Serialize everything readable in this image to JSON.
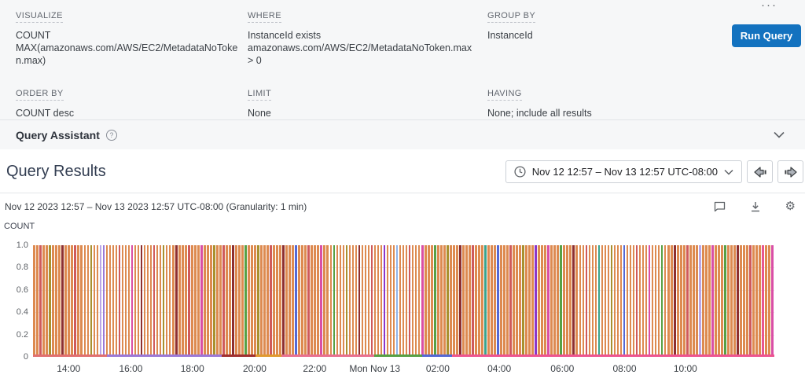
{
  "colors": {
    "run_button": "#1372bf",
    "panel_bg": "#f6f7f8",
    "divider": "#e2e4e8",
    "icon_gray": "#5f6368"
  },
  "icons": {
    "more_menu": "···",
    "help": "?",
    "gear": "⚙"
  },
  "query_builder": {
    "columns_row1": [
      {
        "label": "VISUALIZE",
        "lines": [
          "COUNT",
          "MAX(amazonaws.com/AWS/EC2/MetadataNoToken.max)"
        ]
      },
      {
        "label": "WHERE",
        "lines": [
          "InstanceId exists",
          "amazonaws.com/AWS/EC2/MetadataNoToken.max > 0"
        ]
      },
      {
        "label": "GROUP BY",
        "lines": [
          "InstanceId"
        ]
      }
    ],
    "columns_row2": [
      {
        "label": "ORDER BY",
        "lines": [
          "COUNT desc"
        ]
      },
      {
        "label": "LIMIT",
        "lines": [
          "None"
        ]
      },
      {
        "label": "HAVING",
        "lines": [
          "None; include all results"
        ]
      }
    ],
    "run_button_label": "Run Query"
  },
  "query_assistant": {
    "label": "Query Assistant"
  },
  "results": {
    "title": "Query Results",
    "time_range_label": "Nov 12 12:57 – Nov 13 12:57 UTC-08:00",
    "subtitle": "Nov 12 2023 12:57 – Nov 13 2023 12:57 UTC-08:00 (Granularity: 1 min)"
  },
  "chart_data": {
    "type": "bar",
    "title": "COUNT",
    "xlabel": "",
    "ylabel": "COUNT",
    "ylim": [
      0,
      1.0
    ],
    "grid": true,
    "legend": false,
    "granularity": "1 min",
    "yticks": [
      {
        "label": "1.0",
        "v": 1.0
      },
      {
        "label": "0.8",
        "v": 0.8
      },
      {
        "label": "0.6",
        "v": 0.6
      },
      {
        "label": "0.4",
        "v": 0.4
      },
      {
        "label": "0.2",
        "v": 0.2
      },
      {
        "label": "0",
        "v": 0.0
      }
    ],
    "xticks": [
      {
        "label": "14:00",
        "f": 0.048
      },
      {
        "label": "16:00",
        "f": 0.132
      },
      {
        "label": "18:00",
        "f": 0.215
      },
      {
        "label": "20:00",
        "f": 0.299
      },
      {
        "label": "22:00",
        "f": 0.38
      },
      {
        "label": "Mon Nov 13",
        "f": 0.461
      },
      {
        "label": "02:00",
        "f": 0.546
      },
      {
        "label": "04:00",
        "f": 0.629
      },
      {
        "label": "06:00",
        "f": 0.714
      },
      {
        "label": "08:00",
        "f": 0.798
      },
      {
        "label": "10:00",
        "f": 0.88
      }
    ],
    "bar_count": 235,
    "bar_value": 1.0,
    "default_color": "#dd8a50",
    "palette": {
      "red": "#cf5a5a",
      "maroon": "#8e2f2f",
      "olive": "#a8902f",
      "green": "#57a045",
      "teal": "#3aa38d",
      "purple": "#9b79d6",
      "lavender": "#b9a6e8",
      "violet": "#8b35c9",
      "blue": "#5468d4",
      "lightblue": "#8fb3ea",
      "magenta": "#d94fa5",
      "pink": "#e8578f",
      "orange2": "#e09a30"
    },
    "accents": [
      [
        2,
        "red"
      ],
      [
        5,
        "olive"
      ],
      [
        9,
        "maroon"
      ],
      [
        13,
        "red"
      ],
      [
        18,
        "olive"
      ],
      [
        21,
        "lavender"
      ],
      [
        22,
        "purple"
      ],
      [
        27,
        "red"
      ],
      [
        31,
        "magenta"
      ],
      [
        34,
        "maroon"
      ],
      [
        38,
        "red"
      ],
      [
        41,
        "olive"
      ],
      [
        45,
        "maroon"
      ],
      [
        49,
        "red"
      ],
      [
        53,
        "magenta"
      ],
      [
        57,
        "olive"
      ],
      [
        60,
        "red"
      ],
      [
        63,
        "maroon"
      ],
      [
        67,
        "green"
      ],
      [
        71,
        "olive"
      ],
      [
        75,
        "red"
      ],
      [
        79,
        "maroon"
      ],
      [
        83,
        "blue"
      ],
      [
        87,
        "red"
      ],
      [
        91,
        "magenta"
      ],
      [
        95,
        "green"
      ],
      [
        99,
        "olive"
      ],
      [
        103,
        "maroon"
      ],
      [
        107,
        "red"
      ],
      [
        111,
        "violet"
      ],
      [
        115,
        "lightblue"
      ],
      [
        119,
        "red"
      ],
      [
        123,
        "magenta"
      ],
      [
        127,
        "green"
      ],
      [
        131,
        "olive"
      ],
      [
        135,
        "maroon"
      ],
      [
        139,
        "red"
      ],
      [
        143,
        "teal"
      ],
      [
        147,
        "blue"
      ],
      [
        151,
        "red"
      ],
      [
        155,
        "olive"
      ],
      [
        159,
        "violet"
      ],
      [
        163,
        "magenta"
      ],
      [
        167,
        "green"
      ],
      [
        171,
        "maroon"
      ],
      [
        175,
        "red"
      ],
      [
        179,
        "teal"
      ],
      [
        183,
        "olive"
      ],
      [
        187,
        "blue"
      ],
      [
        191,
        "red"
      ],
      [
        195,
        "magenta"
      ],
      [
        199,
        "green"
      ],
      [
        203,
        "maroon"
      ],
      [
        207,
        "red"
      ],
      [
        211,
        "lavender"
      ],
      [
        215,
        "magenta"
      ],
      [
        219,
        "green"
      ],
      [
        223,
        "maroon"
      ],
      [
        227,
        "red"
      ],
      [
        231,
        "pink"
      ],
      [
        234,
        "magenta"
      ]
    ],
    "baseline_segments": [
      {
        "from": 0.0,
        "to": 0.1,
        "color": "#e07070"
      },
      {
        "from": 0.1,
        "to": 0.255,
        "color": "#9b79d6"
      },
      {
        "from": 0.255,
        "to": 0.3,
        "color": "#a03030"
      },
      {
        "from": 0.3,
        "to": 0.335,
        "color": "#e09a30"
      },
      {
        "from": 0.335,
        "to": 0.46,
        "color": "#e8708f"
      },
      {
        "from": 0.46,
        "to": 0.525,
        "color": "#57a045"
      },
      {
        "from": 0.525,
        "to": 0.565,
        "color": "#5468d4"
      },
      {
        "from": 0.565,
        "to": 1.0,
        "color": "#ed5590"
      }
    ]
  }
}
